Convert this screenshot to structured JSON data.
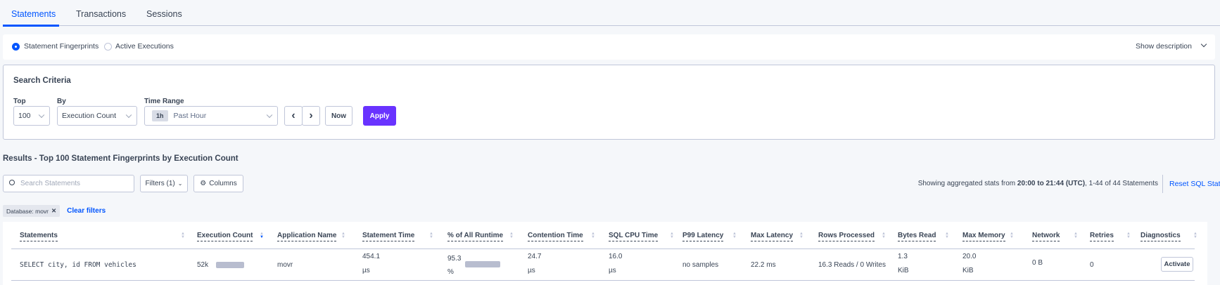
{
  "tabs": [
    {
      "label": "Statements",
      "active": true
    },
    {
      "label": "Transactions"
    },
    {
      "label": "Sessions"
    }
  ],
  "view": {
    "options": [
      "Statement Fingerprints",
      "Active Executions"
    ],
    "selected": "Statement Fingerprints",
    "show_description": "Show description"
  },
  "search_criteria": {
    "title": "Search Criteria",
    "top_label": "Top",
    "top_value": "100",
    "by_label": "By",
    "by_value": "Execution Count",
    "time_label": "Time Range",
    "time_badge": "1h",
    "time_value": "Past Hour",
    "now_label": "Now",
    "apply_label": "Apply"
  },
  "results": {
    "heading": "Results - Top 100 Statement Fingerprints by Execution Count",
    "search_placeholder": "Search Statements",
    "filters_label": "Filters (1)",
    "columns_label": "Columns",
    "stats_prefix": "Showing aggregated stats from ",
    "stats_range": "20:00 to 21:44 (UTC)",
    "stats_suffix": ", 1-44 of 44 Statements",
    "reset_label": "Reset SQL Stats",
    "chip": "Database: movr",
    "clear_filters": "Clear filters"
  },
  "table": {
    "columns": [
      "Statements",
      "Execution Count",
      "Application Name",
      "Statement Time",
      "% of All Runtime",
      "Contention Time",
      "SQL CPU Time",
      "P99 Latency",
      "Max Latency",
      "Rows Processed",
      "Bytes Read",
      "Max Memory",
      "Network",
      "Retries",
      "Diagnostics"
    ],
    "sorted_column": "Execution Count",
    "rows": [
      {
        "statement": "SELECT city, id FROM vehicles",
        "exec_count": "52k",
        "exec_fraction": 1.0,
        "app": "movr",
        "stmt_time": "454.1",
        "stmt_time_unit": "µs",
        "runtime_pct": "95.3",
        "runtime_pct_unit": "%",
        "runtime_fraction": 0.953,
        "contention": "24.7",
        "contention_unit": "µs",
        "cpu": "16.0",
        "cpu_unit": "µs",
        "p99": "no samples",
        "max_latency": "22.2 ms",
        "rows_processed": "16.3 Reads / 0 Writes",
        "bytes_read": "1.3",
        "bytes_read_unit": "KiB",
        "max_memory": "20.0",
        "max_memory_unit": "KiB",
        "network": "0 B",
        "retries": "0",
        "diagnostics": "Activate"
      }
    ]
  },
  "colors": {
    "accent": "#0055ff",
    "apply": "#6933ff",
    "bar": "#b8bdcf"
  }
}
